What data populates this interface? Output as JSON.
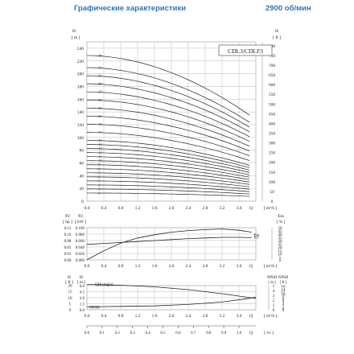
{
  "header": {
    "title": "Графические характеристики",
    "speed": "2900 об/мин"
  },
  "chart_data": [
    {
      "type": "line",
      "title": "CDL3/CDLF3",
      "xlabel": "Q [m³/h]",
      "ylabel_left": "H [m]",
      "ylabel_right": "H [ft]",
      "xlim": [
        0,
        4.0
      ],
      "ylim": [
        0,
        250
      ],
      "ylim_right": [
        0,
        820
      ],
      "x_ticks": [
        "0.0",
        "0.4",
        "0.8",
        "1.2",
        "1.6",
        "2.0",
        "2.4",
        "2.8",
        "3.2",
        "3.6"
      ],
      "y_ticks_left": [
        "0",
        "20",
        "40",
        "60",
        "80",
        "100",
        "120",
        "140",
        "160",
        "180",
        "200",
        "220",
        "240"
      ],
      "y_ticks_right": [
        "0",
        "50",
        "100",
        "150",
        "200",
        "250",
        "300",
        "350",
        "400",
        "450",
        "500",
        "550",
        "600",
        "650",
        "700",
        "750",
        "800"
      ],
      "stages": [
        "36",
        "33",
        "31",
        "29",
        "27",
        "25",
        "23",
        "21",
        "19",
        "17",
        "15",
        "14",
        "13",
        "12",
        "11",
        "10",
        "9",
        "8",
        "7",
        "6",
        "5",
        "4",
        "3",
        "2"
      ],
      "head_per_stage_at_zero": 6.35,
      "end_flow": 3.85,
      "end_fraction": 0.59,
      "grid": true
    },
    {
      "type": "line",
      "xlabel": "Q [m³/h]",
      "ylabel_left_1": "P2 [hp]",
      "ylabel_left_2": "P2 [kW]",
      "ylabel_right": "Eta [%]",
      "xlim": [
        0,
        4.0
      ],
      "P2_kW_ticks": [
        "0.000",
        "0.020",
        "0.040",
        "0.060",
        "0.080",
        "0.100"
      ],
      "P2_hp_ticks": [
        "0.00",
        "0.03",
        "0.05",
        "0.08",
        "0.10",
        "0.13"
      ],
      "eta_ticks": [
        "0",
        "5",
        "10",
        "15",
        "20",
        "25",
        "30",
        "35",
        "40",
        "45",
        "50"
      ],
      "x_ticks": [
        "0.0",
        "0.4",
        "0.8",
        "1.2",
        "1.6",
        "2.0",
        "2.4",
        "2.8",
        "3.2",
        "3.6"
      ],
      "series": [
        {
          "name": "P2",
          "x": [
            0,
            0.4,
            0.8,
            1.2,
            1.6,
            2.0,
            2.4,
            2.8,
            3.2,
            3.6,
            3.9
          ],
          "y": [
            0.048,
            0.051,
            0.054,
            0.057,
            0.06,
            0.063,
            0.066,
            0.068,
            0.07,
            0.07,
            0.069
          ]
        },
        {
          "name": "Eta",
          "x": [
            0,
            0.4,
            0.8,
            1.2,
            1.6,
            2.0,
            2.4,
            2.8,
            3.2,
            3.6,
            3.9
          ],
          "y": [
            0,
            14,
            26,
            34,
            39,
            43,
            45.5,
            47,
            48,
            46,
            43
          ]
        }
      ]
    },
    {
      "type": "line",
      "xlabel": "Q [l/s]",
      "ylabel_left_1": "H [ft]",
      "ylabel_left_2": "H [m]",
      "ylabel_right_1": "NPSH [m]",
      "ylabel_right_2": "NPSH [ft]",
      "xlim": [
        0,
        4.0
      ],
      "H_m_ticks": [
        "0.0",
        "1.5",
        "3.0",
        "4.5",
        "6.0"
      ],
      "H_ft_ticks": [
        "0",
        "5",
        "10",
        "15",
        "20"
      ],
      "npsh_m_ticks": [
        "0",
        "1",
        "2",
        "3",
        "4",
        "5"
      ],
      "npsh_ft_ticks": [
        "0",
        "2",
        "4",
        "6",
        "8",
        "10",
        "12",
        "14",
        "16"
      ],
      "ls_ticks": [
        "0.0",
        "0.1",
        "0.2",
        "0.3",
        "0.4",
        "0.5",
        "0.6",
        "0.7",
        "0.8",
        "0.9",
        "1.0"
      ],
      "x_ticks": [
        "0.0",
        "0.4",
        "0.8",
        "1.2",
        "1.6",
        "2.0",
        "2.4",
        "2.8",
        "3.2",
        "3.6"
      ],
      "series": [
        {
          "name": "QH(single)",
          "x": [
            0,
            0.8,
            1.6,
            2.4,
            3.2,
            3.8,
            4.0
          ],
          "y": [
            6.3,
            6.1,
            5.7,
            5.0,
            4.0,
            3.1,
            2.8
          ]
        },
        {
          "name": "NPSH",
          "x": [
            0,
            0.8,
            1.6,
            2.4,
            3.2,
            3.8,
            4.0
          ],
          "y": [
            0.6,
            0.7,
            0.8,
            1.1,
            1.6,
            2.3,
            2.6
          ]
        }
      ]
    }
  ]
}
